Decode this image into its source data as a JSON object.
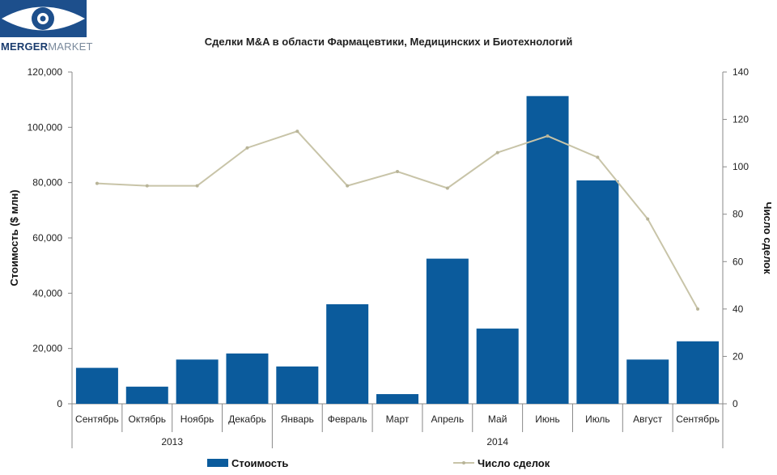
{
  "logo": {
    "text_bold": "MERGER",
    "text_light": "MARKET"
  },
  "chart_data": {
    "type": "bar",
    "title": "Сделки M&A в области Фармацевтики, Медицинских и Биотехнологий",
    "categories": [
      "Сентябрь",
      "Октябрь",
      "Ноябрь",
      "Декабрь",
      "Январь",
      "Февраль",
      "Март",
      "Апрель",
      "Май",
      "Июнь",
      "Июль",
      "Август",
      "Сентябрь"
    ],
    "year_groups": [
      {
        "label": "2013",
        "count": 4
      },
      {
        "label": "2014",
        "count": 9
      }
    ],
    "series": [
      {
        "name": "Стоимость",
        "type": "bar",
        "axis": "left",
        "color": "#0b5b9c",
        "values": [
          13000,
          6200,
          16000,
          18200,
          13500,
          36000,
          3500,
          52500,
          27200,
          111300,
          80800,
          16000,
          22600
        ]
      },
      {
        "name": "Число сделок",
        "type": "line",
        "axis": "right",
        "color": "#c8c4a8",
        "values": [
          93,
          92,
          92,
          108,
          115,
          92,
          98,
          91,
          106,
          113,
          104,
          78,
          40
        ]
      }
    ],
    "ylabel": "Стоимость  ($ млн)",
    "y2label": "Число сделок",
    "ylim": [
      0,
      120000
    ],
    "y2lim": [
      0,
      140
    ],
    "yticks": [
      "0",
      "20,000",
      "40,000",
      "60,000",
      "80,000",
      "100,000",
      "120,000"
    ],
    "y2ticks": [
      "0",
      "20",
      "40",
      "60",
      "80",
      "100",
      "120",
      "140"
    ],
    "legend_position": "bottom"
  }
}
